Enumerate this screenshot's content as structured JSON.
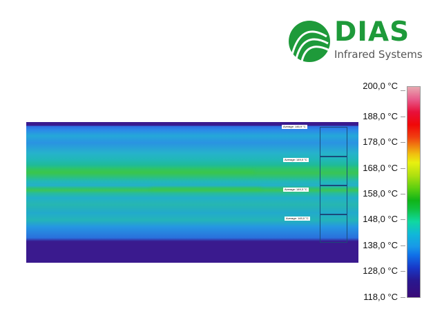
{
  "logo": {
    "name": "DIAS",
    "subtitle": "Infrared Systems",
    "color": "#1e9a3a"
  },
  "thermal_image": {
    "roi_labels": [
      "Average: 146,9 °C",
      "Average: 149,0 °C",
      "Average: 149,3 °C",
      "Average: 145,0 °C"
    ]
  },
  "colorbar": {
    "labels": [
      "200,0 °C",
      "188,0 °C",
      "178,0 °C",
      "168,0 °C",
      "158,0 °C",
      "148,0 °C",
      "138,0 °C",
      "128,0 °C",
      "118,0 °C"
    ],
    "min": "118,0 °C",
    "max": "200,0 °C"
  }
}
